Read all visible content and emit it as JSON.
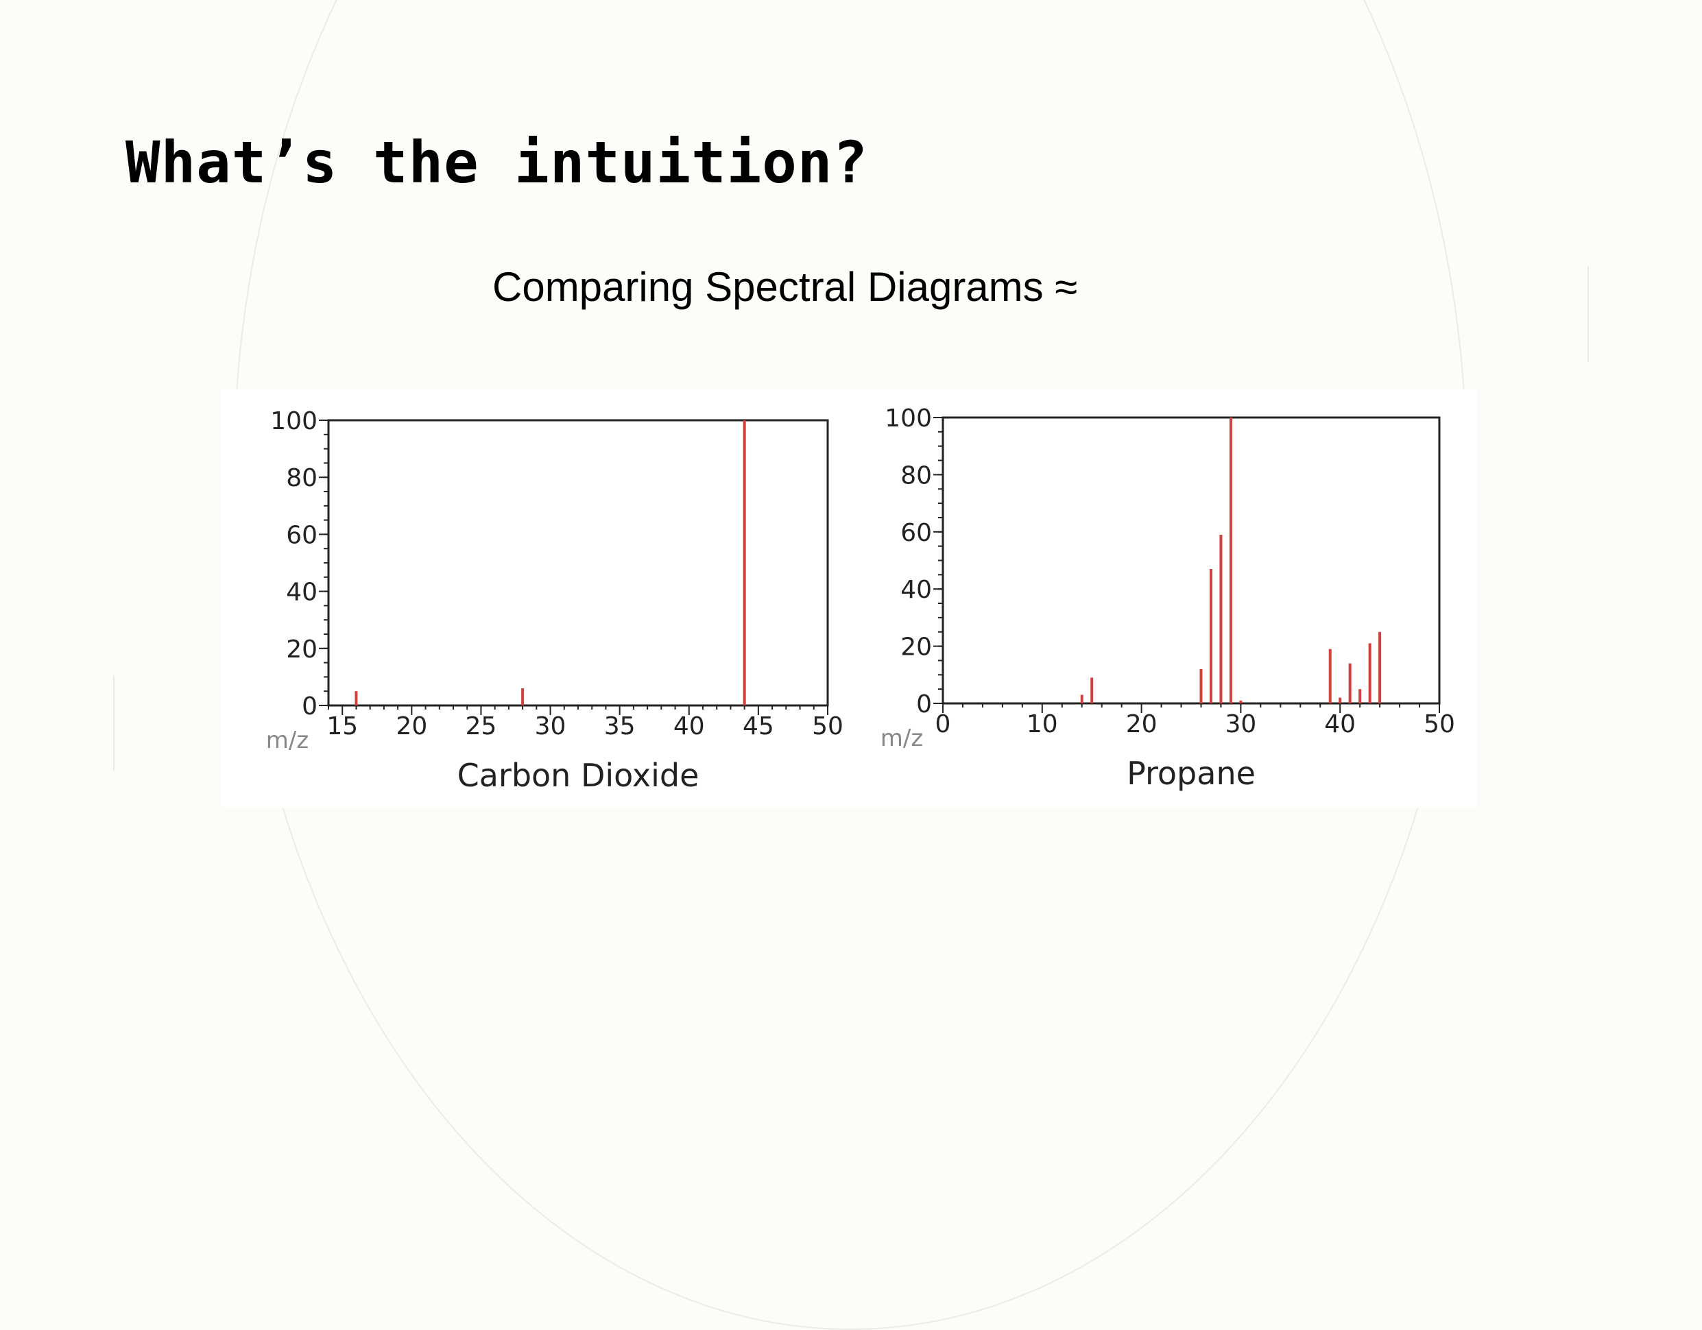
{
  "slide": {
    "title": "What’s the intuition?",
    "subtitle": "Comparing Spectral Diagrams ≈"
  },
  "chart_data": [
    {
      "type": "bar",
      "title": "Carbon Dioxide",
      "xlabel": "m/z",
      "ylabel": "",
      "xlim": [
        14,
        50
      ],
      "ylim": [
        0,
        100
      ],
      "x_ticks": [
        15,
        20,
        25,
        30,
        35,
        40,
        45,
        50
      ],
      "y_ticks": [
        0,
        20,
        40,
        60,
        80,
        100
      ],
      "grid": false,
      "bar_color": "#d0403e",
      "peaks": {
        "x": [
          16,
          28,
          44
        ],
        "y": [
          5,
          6,
          100
        ]
      }
    },
    {
      "type": "bar",
      "title": "Propane",
      "xlabel": "m/z",
      "ylabel": "",
      "xlim": [
        0,
        50
      ],
      "ylim": [
        0,
        100
      ],
      "x_ticks": [
        0,
        10,
        20,
        30,
        40,
        50
      ],
      "y_ticks": [
        0,
        20,
        40,
        60,
        80,
        100
      ],
      "grid": false,
      "bar_color": "#d0403e",
      "peaks": {
        "x": [
          14,
          15,
          26,
          27,
          28,
          29,
          30,
          39,
          40,
          41,
          42,
          43,
          44
        ],
        "y": [
          3,
          9,
          12,
          47,
          59,
          100,
          1,
          19,
          2,
          14,
          5,
          21,
          25
        ]
      }
    }
  ]
}
